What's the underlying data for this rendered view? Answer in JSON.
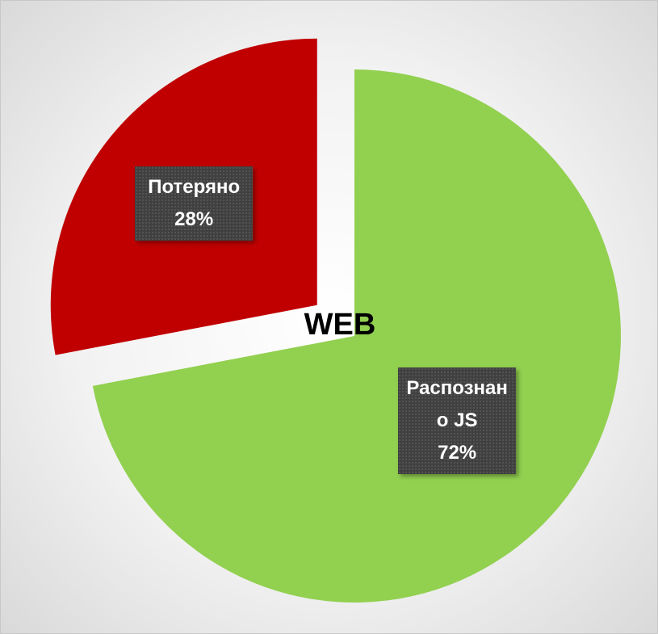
{
  "chart_data": {
    "type": "pie",
    "title": "WEB",
    "categories": [
      "Распознано JS",
      "Потеряно"
    ],
    "values": [
      72,
      28
    ],
    "value_labels": [
      "72%",
      "28%"
    ],
    "colors": [
      "#92d050",
      "#c00000"
    ]
  }
}
